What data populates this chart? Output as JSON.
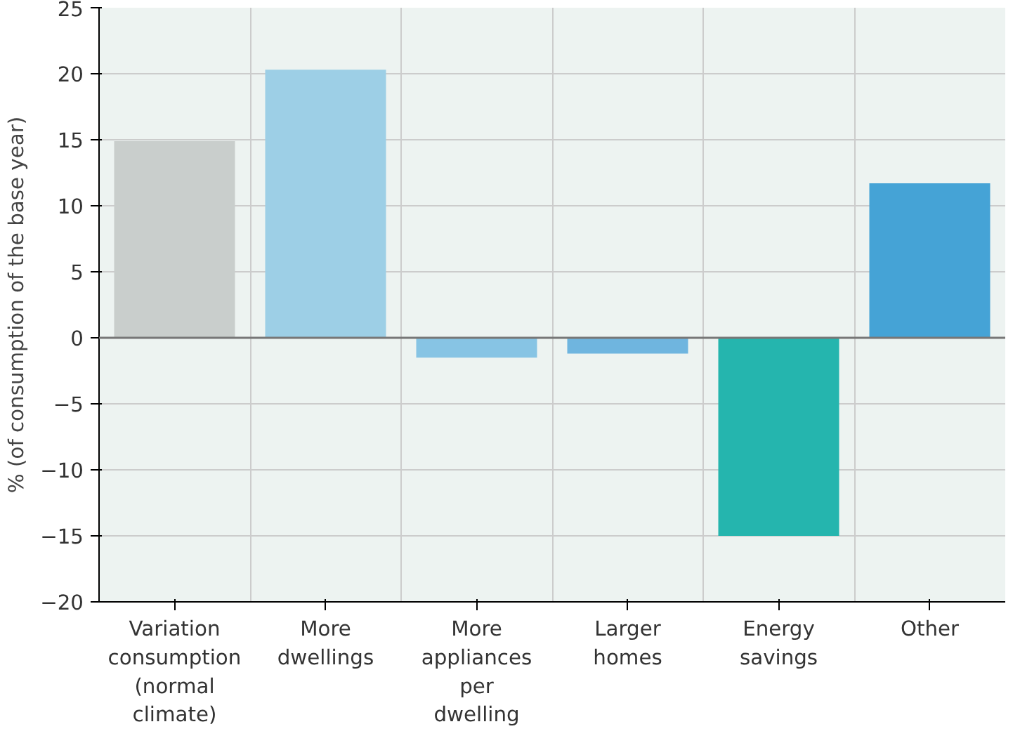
{
  "chart_data": {
    "type": "bar",
    "ylabel": "% (of consumption of the base year)",
    "categories": [
      "Variation consumption (normal climate)",
      "More dwellings",
      "More appliances per dwelling",
      "Larger homes",
      "Energy savings",
      "Other"
    ],
    "values": [
      14.9,
      20.3,
      -1.5,
      -1.2,
      -15.0,
      11.7
    ],
    "colors": [
      "#c9cecc",
      "#9dcfe6",
      "#87c4e4",
      "#6fb5df",
      "#25b5ae",
      "#45a3d6"
    ],
    "ylim": [
      -20,
      25
    ],
    "yticks": [
      -20,
      -15,
      -10,
      -5,
      0,
      5,
      10,
      15,
      20,
      25
    ],
    "grid": true
  }
}
